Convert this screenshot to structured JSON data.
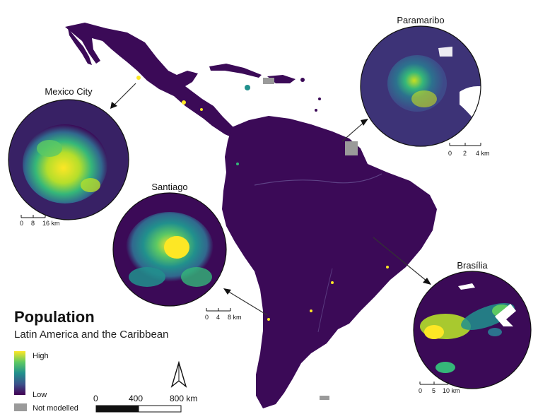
{
  "legend": {
    "title": "Population",
    "subtitle": "Latin America and the Caribbean",
    "high_label": "High",
    "low_label": "Low",
    "not_modelled_label": "Not modelled",
    "colors": {
      "viridis": [
        "#440154",
        "#3b528b",
        "#21908d",
        "#5dc963",
        "#fde725"
      ],
      "not_modelled": "#9a9a9a",
      "base": "#3b0a57"
    }
  },
  "insets": [
    {
      "name": "Mexico City",
      "scale_labels": [
        "0",
        "8",
        "16 km"
      ]
    },
    {
      "name": "Paramaribo",
      "scale_labels": [
        "0",
        "2",
        "4 km"
      ]
    },
    {
      "name": "Santiago",
      "scale_labels": [
        "0",
        "4",
        "8 km"
      ]
    },
    {
      "name": "Brasília",
      "scale_labels": [
        "0",
        "5",
        "10 km"
      ]
    }
  ],
  "main_scale": {
    "labels": [
      "0",
      "400",
      "800 km"
    ]
  },
  "north_arrow": {
    "icon": "north-arrow-icon"
  }
}
